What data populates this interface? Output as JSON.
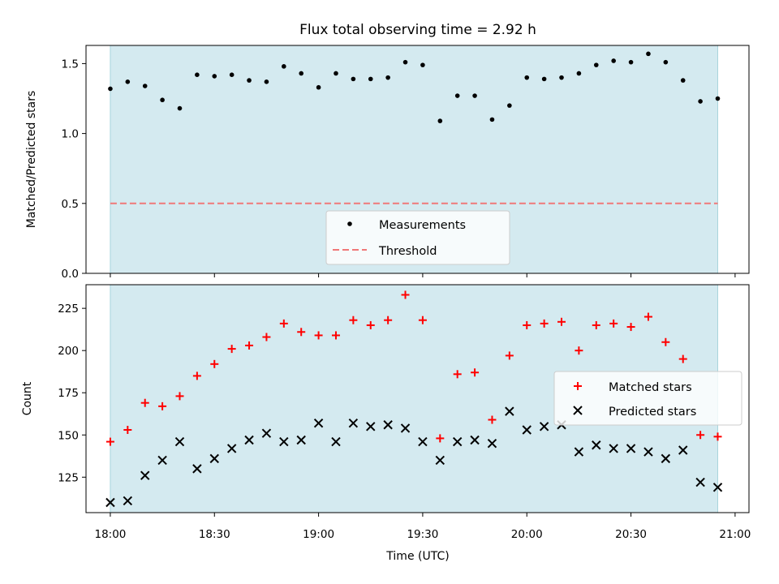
{
  "chart_data": [
    {
      "type": "scatter",
      "title": "Flux total observing time = 2.92 h",
      "ylabel": "Matched/Predicted stars",
      "xlabel": "",
      "ylim": [
        0,
        1.63
      ],
      "yticks": [
        0.0,
        0.5,
        1.0,
        1.5
      ],
      "ytick_labels": [
        "0.0",
        "0.5",
        "1.0",
        "1.5"
      ],
      "observing_window": [
        "18:00",
        "20:55"
      ],
      "background_color": "#d4eaf0",
      "grid": false,
      "legend_position": "bottom-center",
      "x": [
        "18:00",
        "18:05",
        "18:10",
        "18:15",
        "18:20",
        "18:25",
        "18:30",
        "18:35",
        "18:40",
        "18:45",
        "18:50",
        "18:55",
        "19:00",
        "19:05",
        "19:10",
        "19:15",
        "19:20",
        "19:25",
        "19:30",
        "19:35",
        "19:40",
        "19:45",
        "19:50",
        "19:55",
        "20:00",
        "20:05",
        "20:10",
        "20:15",
        "20:20",
        "20:25",
        "20:30",
        "20:35",
        "20:40",
        "20:45",
        "20:50",
        "20:55"
      ],
      "series": [
        {
          "name": "Measurements",
          "marker": "dot",
          "color": "#000000",
          "values": [
            1.32,
            1.37,
            1.34,
            1.24,
            1.18,
            1.42,
            1.41,
            1.42,
            1.38,
            1.37,
            1.48,
            1.43,
            1.33,
            1.43,
            1.39,
            1.39,
            1.4,
            1.51,
            1.49,
            1.09,
            1.27,
            1.27,
            1.1,
            1.2,
            1.4,
            1.39,
            1.4,
            1.43,
            1.49,
            1.52,
            1.51,
            1.57,
            1.51,
            1.38,
            1.23,
            1.25
          ]
        },
        {
          "name": "Threshold",
          "marker": "dashed-line",
          "color": "#f07878",
          "values": [
            0.5,
            0.5
          ]
        }
      ]
    },
    {
      "type": "scatter",
      "title": "",
      "ylabel": "Count",
      "xlabel": "Time (UTC)",
      "ylim": [
        104,
        239
      ],
      "yticks": [
        125,
        150,
        175,
        200,
        225
      ],
      "ytick_labels": [
        "125",
        "150",
        "175",
        "200",
        "225"
      ],
      "xticks": [
        "18:00",
        "18:30",
        "19:00",
        "19:30",
        "20:00",
        "20:30",
        "21:00"
      ],
      "observing_window": [
        "18:00",
        "20:55"
      ],
      "background_color": "#d4eaf0",
      "grid": false,
      "legend_position": "center-right",
      "x": [
        "18:00",
        "18:05",
        "18:10",
        "18:15",
        "18:20",
        "18:25",
        "18:30",
        "18:35",
        "18:40",
        "18:45",
        "18:50",
        "18:55",
        "19:00",
        "19:05",
        "19:10",
        "19:15",
        "19:20",
        "19:25",
        "19:30",
        "19:35",
        "19:40",
        "19:45",
        "19:50",
        "19:55",
        "20:00",
        "20:05",
        "20:10",
        "20:15",
        "20:20",
        "20:25",
        "20:30",
        "20:35",
        "20:40",
        "20:45",
        "20:50",
        "20:55"
      ],
      "series": [
        {
          "name": "Matched stars",
          "marker": "plus",
          "color": "#ff0000",
          "values": [
            146,
            153,
            169,
            167,
            173,
            185,
            192,
            201,
            203,
            208,
            216,
            211,
            209,
            209,
            218,
            215,
            218,
            233,
            218,
            148,
            186,
            187,
            159,
            197,
            215,
            216,
            217,
            200,
            215,
            216,
            214,
            220,
            205,
            195,
            150,
            149
          ]
        },
        {
          "name": "Predicted stars",
          "marker": "x",
          "color": "#000000",
          "values": [
            110,
            111,
            126,
            135,
            146,
            130,
            136,
            142,
            147,
            151,
            146,
            147,
            157,
            146,
            157,
            155,
            156,
            154,
            146,
            135,
            146,
            147,
            145,
            164,
            153,
            155,
            156,
            140,
            144,
            142,
            142,
            140,
            136,
            141,
            122,
            119
          ]
        }
      ]
    }
  ]
}
